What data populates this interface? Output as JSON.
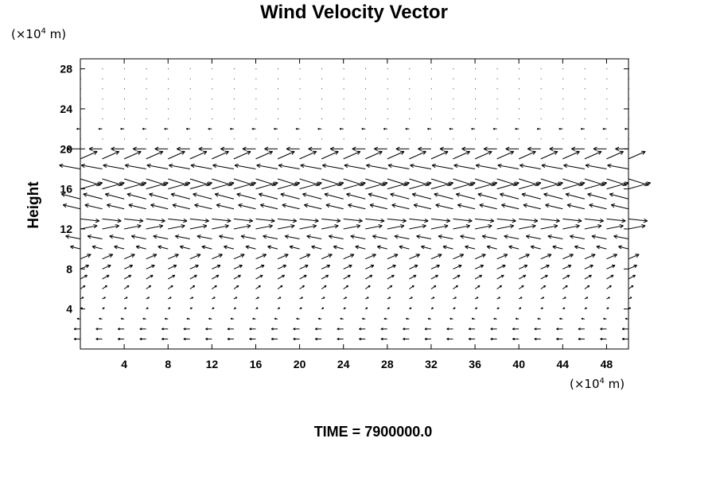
{
  "chart_data": {
    "type": "vector-field",
    "title": "Wind Velocity Vector",
    "xlabel": "",
    "ylabel": "Height",
    "x_unit_label": {
      "prefix": "(×10",
      "exponent": "4",
      "suffix": " m)"
    },
    "y_unit_label": {
      "prefix": "(×10",
      "exponent": "4",
      "suffix": " m)"
    },
    "xlim": [
      0,
      50
    ],
    "ylim": [
      0,
      29
    ],
    "xticks": [
      "4",
      "8",
      "12",
      "16",
      "20",
      "24",
      "28",
      "32",
      "36",
      "40",
      "44",
      "48"
    ],
    "yticks": [
      "4",
      "8",
      "12",
      "16",
      "20",
      "24",
      "28"
    ],
    "grid": false,
    "time_label": "TIME = 7900000.0",
    "field_sample": {
      "x_points": [
        0,
        2,
        4,
        6,
        8,
        10,
        12,
        14,
        16,
        18,
        20,
        22,
        24,
        26,
        28,
        30,
        32,
        34,
        36,
        38,
        40,
        42,
        44,
        46,
        48,
        50
      ],
      "rows": [
        {
          "height": 1,
          "u": -1.2,
          "w": 0.0
        },
        {
          "height": 2,
          "u": -1.2,
          "w": 0.0
        },
        {
          "height": 3,
          "u": -0.6,
          "w": 0.1
        },
        {
          "height": 4,
          "u": 0.4,
          "w": 0.3
        },
        {
          "height": 5,
          "u": 0.6,
          "w": 0.4
        },
        {
          "height": 6,
          "u": 0.9,
          "w": 0.8
        },
        {
          "height": 7,
          "u": 1.3,
          "w": 0.9
        },
        {
          "height": 8,
          "u": 1.6,
          "w": 0.9
        },
        {
          "height": 9,
          "u": 2.0,
          "w": 1.1
        },
        {
          "height": 10,
          "u": -1.9,
          "w": 0.6
        },
        {
          "height": 11,
          "u": -2.8,
          "w": 0.7
        },
        {
          "height": 12,
          "u": 3.2,
          "w": 0.8
        },
        {
          "height": 13,
          "u": 3.6,
          "w": -0.5
        },
        {
          "height": 14,
          "u": -3.3,
          "w": 1.0
        },
        {
          "height": 15,
          "u": -3.6,
          "w": 1.2
        },
        {
          "height": 16,
          "u": 4.2,
          "w": 1.5
        },
        {
          "height": 17,
          "u": 3.8,
          "w": -1.5
        },
        {
          "height": 18,
          "u": -4.0,
          "w": 0.9
        },
        {
          "height": 19,
          "u": 3.2,
          "w": 1.8
        },
        {
          "height": 20,
          "u": -2.5,
          "w": 0.0
        },
        {
          "height": 21,
          "u": 0.0,
          "w": 0.0
        },
        {
          "height": 22,
          "u": -0.7,
          "w": 0.0
        },
        {
          "height": 23,
          "u": 0.0,
          "w": 0.0
        },
        {
          "height": 24,
          "u": 0.0,
          "w": 0.0
        },
        {
          "height": 25,
          "u": 0.0,
          "w": 0.0
        },
        {
          "height": 26,
          "u": 0.0,
          "w": 0.0
        },
        {
          "height": 27,
          "u": 0.0,
          "w": 0.0
        },
        {
          "height": 28,
          "u": 0.0,
          "w": 0.0
        },
        {
          "height": 29,
          "u": 0.0,
          "w": 0.0
        }
      ]
    }
  }
}
